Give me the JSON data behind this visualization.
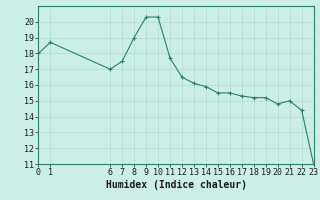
{
  "title": "",
  "xlabel": "Humidex (Indice chaleur)",
  "ylabel": "",
  "background_color": "#cceee8",
  "line_color": "#2e7d6e",
  "marker": "+",
  "xlim": [
    0,
    23
  ],
  "ylim": [
    11,
    21
  ],
  "xticks": [
    0,
    1,
    6,
    7,
    8,
    9,
    10,
    11,
    12,
    13,
    14,
    15,
    16,
    17,
    18,
    19,
    20,
    21,
    22,
    23
  ],
  "yticks": [
    11,
    12,
    13,
    14,
    15,
    16,
    17,
    18,
    19,
    20
  ],
  "x": [
    0,
    1,
    6,
    7,
    8,
    9,
    10,
    11,
    12,
    13,
    14,
    15,
    16,
    17,
    18,
    19,
    20,
    21,
    22,
    23
  ],
  "y": [
    18.0,
    18.7,
    17.0,
    17.5,
    19.0,
    20.3,
    20.3,
    17.7,
    16.5,
    16.1,
    15.9,
    15.5,
    15.5,
    15.3,
    15.2,
    15.2,
    14.8,
    15.0,
    14.4,
    11.0
  ],
  "grid_color": "#aaddcc",
  "tick_fontsize": 6,
  "xlabel_fontsize": 7
}
